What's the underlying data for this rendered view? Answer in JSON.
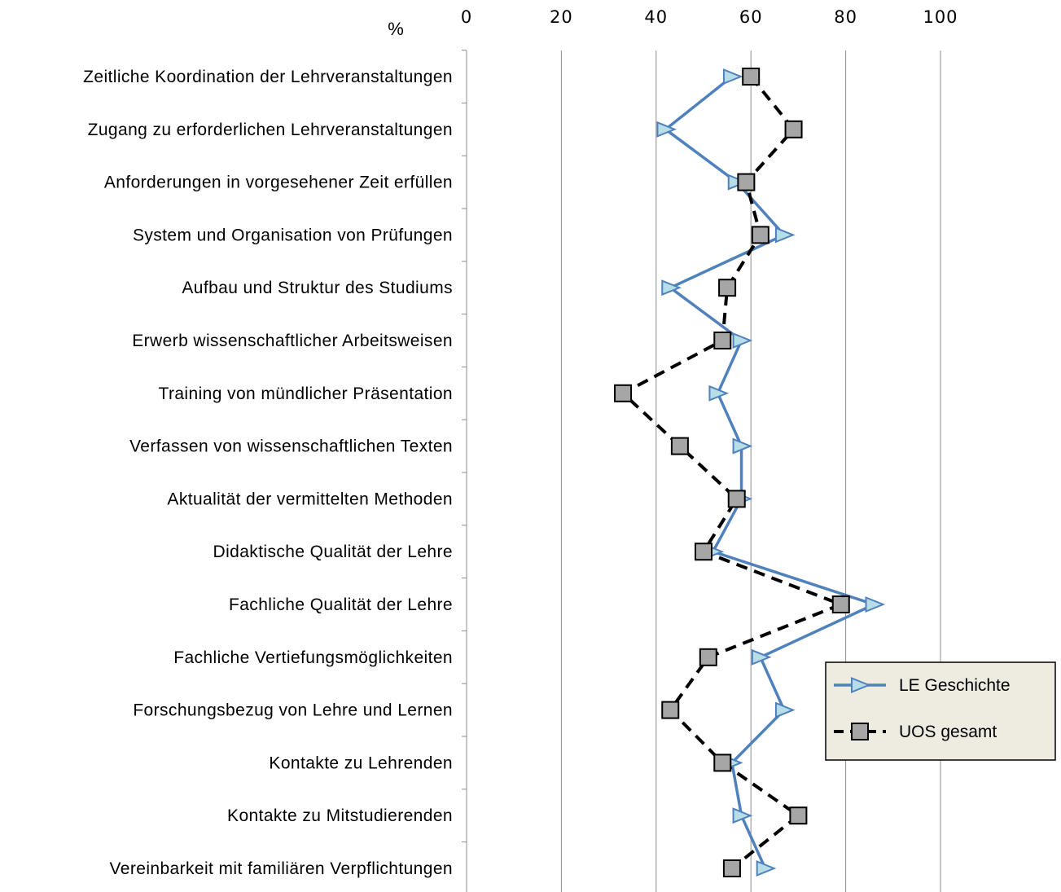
{
  "chart_data": {
    "type": "line",
    "orientation": "horizontal",
    "unit_label": "%",
    "x_axis_position": "top",
    "xlim": [
      0,
      100
    ],
    "xticks": [
      0,
      20,
      40,
      60,
      80,
      100
    ],
    "grid": "vertical",
    "legend_position": "right",
    "categories": [
      "Zeitliche Koordination der Lehrveranstaltungen",
      "Zugang zu erforderlichen Lehrveranstaltungen",
      "Anforderungen in vorgesehener Zeit erfüllen",
      "System und Organisation von Prüfungen",
      "Aufbau und Struktur des Studiums",
      "Erwerb wissenschaftlicher Arbeitsweisen",
      "Training von mündlicher Präsentation",
      "Verfassen von wissenschaftlichen Texten",
      "Aktualität der vermittelten Methoden",
      "Didaktische Qualität der Lehre",
      "Fachliche Qualität der Lehre",
      "Fachliche Vertiefungsmöglichkeiten",
      "Forschungsbezug von Lehre und Lernen",
      "Kontakte zu Lehrenden",
      "Kontakte zu Mitstudierenden",
      "Vereinbarkeit mit familiären Verpflichtungen"
    ],
    "series": [
      {
        "name": "LE Geschichte",
        "color": "#4f81bd",
        "marker": "triangle-right",
        "marker_fill": "#b7dde8",
        "line_style": "solid",
        "values": [
          56,
          42,
          57,
          67,
          43,
          58,
          53,
          58,
          58,
          52,
          86,
          62,
          67,
          56,
          58,
          63
        ]
      },
      {
        "name": "UOS gesamt",
        "color": "#000000",
        "marker": "square",
        "marker_fill": "#a6a6a6",
        "line_style": "dashed",
        "values": [
          60,
          69,
          59,
          62,
          55,
          54,
          33,
          45,
          57,
          50,
          79,
          51,
          43,
          54,
          70,
          56
        ]
      }
    ]
  }
}
